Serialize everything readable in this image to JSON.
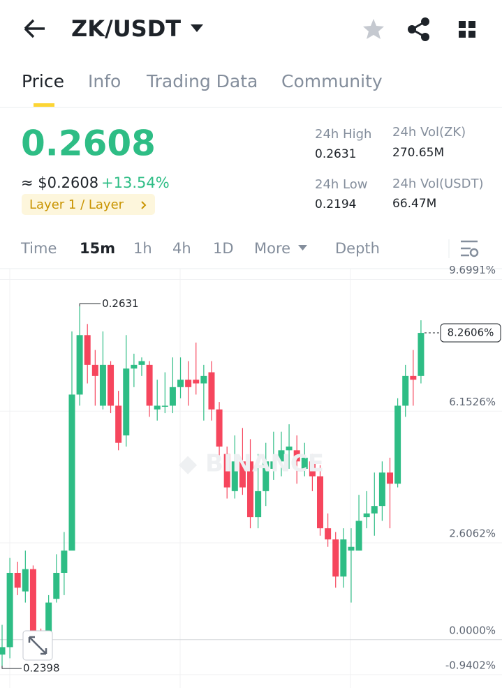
{
  "header": {
    "pair": "ZK/USDT"
  },
  "tabs": [
    "Price",
    "Info",
    "Trading Data",
    "Community"
  ],
  "price": {
    "last": "0.2608",
    "usd": "≈ $0.2608",
    "change": "+13.54%",
    "tag": "Layer 1 / Layer"
  },
  "stats": [
    {
      "label": "24h High",
      "value": "0.2631"
    },
    {
      "label": "24h Vol(ZK)",
      "value": "270.65M"
    },
    {
      "label": "24h Low",
      "value": "0.2194"
    },
    {
      "label": "24h Vol(USDT)",
      "value": "66.47M"
    }
  ],
  "intervals": [
    "Time",
    "15m",
    "1h",
    "4h",
    "1D",
    "More",
    "Depth"
  ],
  "chart_data": {
    "type": "candlestick",
    "up_color": "#2ebd85",
    "down_color": "#f6465d",
    "open": [
      -0.4,
      -0.2,
      1.8,
      1.3,
      1.9,
      0.1,
      -0.1,
      1.1,
      1.8,
      2.4,
      6.6,
      8.2,
      7.4,
      6.3,
      7.4,
      6.3,
      5.5,
      7.3,
      7.4,
      7.4,
      6.2,
      6.3,
      6.3,
      6.8,
      7.0,
      7.0,
      6.9,
      7.2,
      6.2,
      5.0,
      4.0,
      4.8,
      4.8,
      3.3,
      4.0,
      4.6,
      4.8,
      5.1,
      5.1,
      4.6,
      4.8,
      4.4,
      3.0,
      2.7,
      1.7,
      2.4,
      2.4,
      3.3,
      3.4,
      3.6,
      4.5,
      4.2,
      6.3,
      7.1,
      7.1
    ],
    "high": [
      0.4,
      2.2,
      2.1,
      2.4,
      2.0,
      0.3,
      1.2,
      2.3,
      2.9,
      8.3,
      8.97,
      8.5,
      7.8,
      8.3,
      7.5,
      6.7,
      8.2,
      7.7,
      7.6,
      7.5,
      7.0,
      7.2,
      7.6,
      7.6,
      7.5,
      8.0,
      7.4,
      7.5,
      6.4,
      5.2,
      5.5,
      5.7,
      5.4,
      5.0,
      5.3,
      5.6,
      5.6,
      5.8,
      5.5,
      5.3,
      5.0,
      4.7,
      3.4,
      2.9,
      3.0,
      3.0,
      3.9,
      4.0,
      4.5,
      4.8,
      4.9,
      6.5,
      7.4,
      7.8,
      8.6
    ],
    "low": [
      -0.7,
      -0.5,
      1.2,
      1.0,
      -0.5,
      -0.4,
      -0.2,
      1.0,
      1.2,
      2.4,
      6.3,
      6.9,
      6.3,
      6.2,
      6.1,
      5.1,
      5.2,
      6.8,
      7.1,
      6.0,
      5.9,
      6.1,
      6.1,
      6.5,
      6.3,
      6.6,
      5.9,
      5.9,
      4.8,
      3.8,
      3.8,
      3.9,
      3.0,
      3.0,
      3.6,
      4.3,
      4.4,
      4.6,
      4.2,
      4.4,
      4.0,
      2.8,
      2.5,
      1.4,
      1.4,
      1.0,
      2.4,
      3.0,
      2.8,
      3.2,
      3.0,
      4.1,
      6.0,
      6.3,
      6.9
    ],
    "close": [
      -0.2,
      1.8,
      1.4,
      1.9,
      0.1,
      -0.1,
      1.0,
      1.8,
      2.4,
      6.6,
      8.2,
      7.4,
      7.1,
      7.4,
      6.3,
      5.3,
      7.3,
      7.4,
      7.5,
      6.3,
      6.3,
      6.3,
      6.8,
      7.0,
      6.8,
      6.9,
      7.1,
      6.2,
      5.2,
      4.1,
      4.8,
      4.1,
      3.3,
      4.0,
      4.8,
      4.8,
      5.1,
      5.2,
      4.8,
      4.9,
      4.4,
      3.0,
      2.7,
      1.7,
      2.7,
      2.5,
      3.2,
      3.4,
      3.6,
      4.5,
      4.2,
      6.3,
      7.1,
      7.0,
      8.26
    ],
    "ylim": [
      -1.3,
      9.99
    ],
    "yticks": [
      {
        "value": 9.6991,
        "label": "9.6991%"
      },
      {
        "value": 6.1526,
        "label": "6.1526%"
      },
      {
        "value": 2.6062,
        "label": "2.6062%"
      },
      {
        "value": 0,
        "label": "0.0000%"
      },
      {
        "value": -0.9402,
        "label": "-0.9402%"
      }
    ],
    "last_price": {
      "value": 8.2606,
      "label": "8.2606%"
    },
    "high_label": "0.2631",
    "low_label": "0.2398"
  }
}
